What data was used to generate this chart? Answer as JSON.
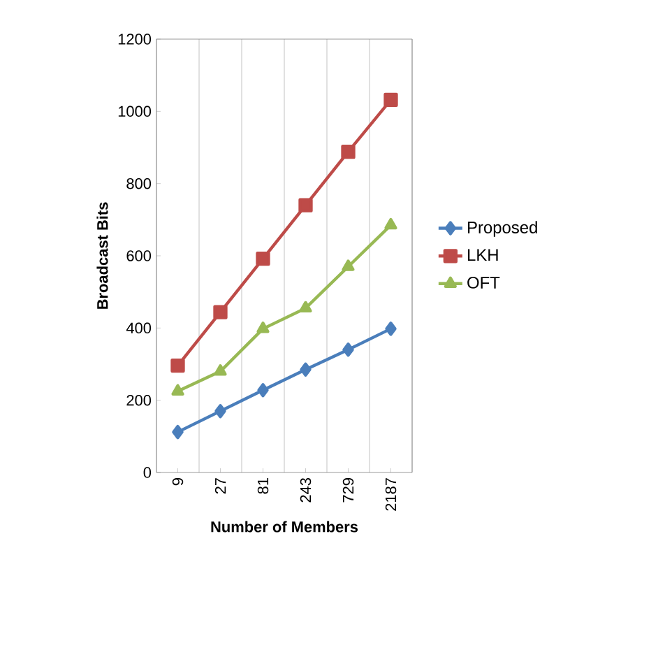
{
  "chart_data": {
    "type": "line",
    "xlabel": "Number of Members",
    "ylabel": "Broadcast Bits",
    "categories": [
      "9",
      "27",
      "81",
      "243",
      "729",
      "2187"
    ],
    "series": [
      {
        "name": "Proposed",
        "color": "#4a7ebb",
        "marker": "diamond",
        "values": [
          112,
          170,
          228,
          285,
          340,
          398
        ]
      },
      {
        "name": "LKH",
        "color": "#be4b48",
        "marker": "square",
        "values": [
          296,
          444,
          592,
          740,
          888,
          1032
        ]
      },
      {
        "name": "OFT",
        "color": "#98b954",
        "marker": "triangle",
        "values": [
          225,
          280,
          398,
          455,
          570,
          685
        ]
      }
    ],
    "ylim": [
      0,
      1200
    ],
    "yticks": [
      0,
      200,
      400,
      600,
      800,
      1000,
      1200
    ],
    "grid": "x",
    "legend": "right",
    "line_style": "solid"
  }
}
